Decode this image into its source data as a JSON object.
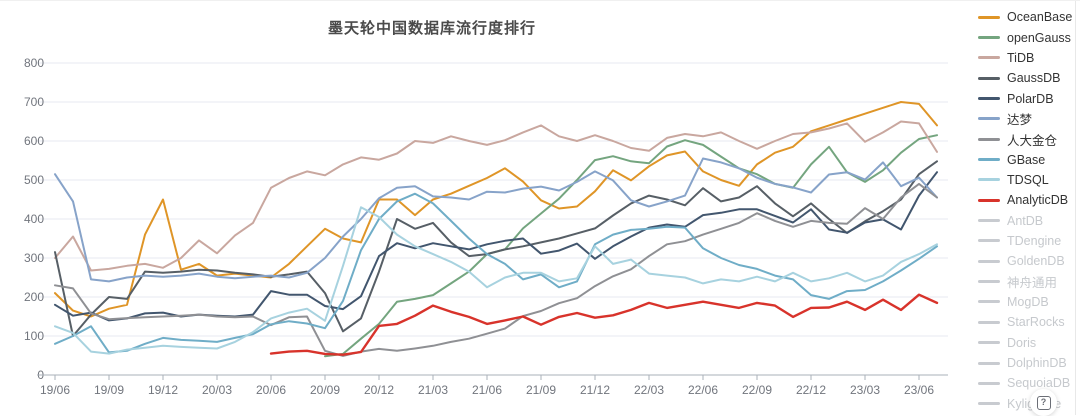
{
  "help_button": {
    "icon": "boxed-question-icon",
    "glyph": "?"
  },
  "axis_style": {
    "label_color": "#71757d",
    "grid_color": "#e7eaf1",
    "axis_line_color": "#aab0b8"
  },
  "chart_data": {
    "type": "line",
    "title": "墨天轮中国数据库流行度排行",
    "xlabel": "",
    "ylabel": "",
    "ylim": [
      0,
      800
    ],
    "y_ticks": [
      0,
      100,
      200,
      300,
      400,
      500,
      600,
      700,
      800
    ],
    "grid": true,
    "legend_position": "right",
    "x": [
      "19/06",
      "19/07",
      "19/08",
      "19/09",
      "19/10",
      "19/11",
      "19/12",
      "20/01",
      "20/02",
      "20/03",
      "20/04",
      "20/05",
      "20/06",
      "20/07",
      "20/08",
      "20/09",
      "20/10",
      "20/11",
      "20/12",
      "21/01",
      "21/02",
      "21/03",
      "21/04",
      "21/05",
      "21/06",
      "21/07",
      "21/08",
      "21/09",
      "21/10",
      "21/11",
      "21/12",
      "22/01",
      "22/02",
      "22/03",
      "22/04",
      "22/05",
      "22/06",
      "22/07",
      "22/08",
      "22/09",
      "22/10",
      "22/11",
      "22/12",
      "23/01",
      "23/02",
      "23/03",
      "23/04",
      "23/05",
      "23/06",
      "23/07"
    ],
    "x_tick_every": 3,
    "disabled_swatch_color": "#c8cbd0",
    "series": [
      {
        "name": "OceanBase",
        "color": "#df9527",
        "active": true,
        "values": [
          210,
          165,
          150,
          170,
          180,
          360,
          450,
          270,
          285,
          255,
          260,
          255,
          250,
          285,
          330,
          375,
          350,
          340,
          450,
          450,
          410,
          450,
          465,
          485,
          505,
          530,
          496,
          448,
          427,
          432,
          471,
          525,
          499,
          535,
          563,
          573,
          522,
          500,
          485,
          540,
          570,
          585,
          625,
          640,
          655,
          670,
          685,
          700,
          695,
          640
        ]
      },
      {
        "name": "openGauss",
        "color": "#74a57f",
        "active": true,
        "values": [
          null,
          null,
          null,
          null,
          null,
          null,
          null,
          null,
          null,
          null,
          null,
          null,
          null,
          null,
          null,
          48,
          54,
          93,
          131,
          188,
          195,
          205,
          235,
          265,
          310,
          322,
          376,
          414,
          452,
          500,
          551,
          561,
          548,
          543,
          586,
          602,
          590,
          560,
          530,
          515,
          490,
          480,
          540,
          585,
          520,
          495,
          525,
          570,
          605,
          615
        ]
      },
      {
        "name": "TiDB",
        "color": "#c9a79f",
        "active": true,
        "values": [
          300,
          355,
          268,
          272,
          280,
          285,
          275,
          300,
          345,
          312,
          358,
          390,
          480,
          505,
          522,
          512,
          540,
          558,
          552,
          568,
          600,
          595,
          612,
          600,
          590,
          602,
          622,
          640,
          612,
          600,
          615,
          600,
          582,
          575,
          608,
          618,
          612,
          622,
          600,
          580,
          600,
          618,
          622,
          632,
          645,
          598,
          622,
          650,
          645,
          572
        ]
      },
      {
        "name": "GaussDB",
        "color": "#575f66",
        "active": true,
        "values": [
          315,
          100,
          155,
          200,
          195,
          265,
          262,
          265,
          270,
          268,
          262,
          258,
          252,
          258,
          265,
          210,
          112,
          145,
          265,
          400,
          375,
          390,
          340,
          305,
          310,
          322,
          330,
          340,
          350,
          363,
          376,
          409,
          440,
          460,
          450,
          435,
          479,
          445,
          455,
          484,
          440,
          407,
          440,
          400,
          364,
          394,
          420,
          450,
          515,
          548
        ]
      },
      {
        "name": "PolarDB",
        "color": "#42566e",
        "active": true,
        "values": [
          180,
          152,
          160,
          140,
          145,
          158,
          160,
          150,
          155,
          152,
          150,
          155,
          215,
          206,
          206,
          177,
          169,
          202,
          305,
          338,
          325,
          338,
          330,
          322,
          335,
          344,
          350,
          311,
          319,
          337,
          298,
          330,
          355,
          378,
          386,
          380,
          410,
          416,
          425,
          425,
          408,
          391,
          425,
          373,
          365,
          391,
          399,
          373,
          460,
          520
        ]
      },
      {
        "name": "达梦",
        "color": "#87a3c9",
        "active": true,
        "values": [
          515,
          445,
          245,
          240,
          250,
          255,
          252,
          255,
          260,
          252,
          248,
          252,
          255,
          250,
          262,
          300,
          355,
          400,
          453,
          480,
          484,
          458,
          455,
          450,
          470,
          468,
          478,
          483,
          473,
          495,
          522,
          499,
          448,
          432,
          445,
          460,
          555,
          545,
          530,
          506,
          490,
          481,
          468,
          514,
          520,
          501,
          545,
          484,
          506,
          455
        ]
      },
      {
        "name": "人大金仓",
        "color": "#8f9094",
        "active": true,
        "values": [
          230,
          222,
          158,
          143,
          146,
          148,
          150,
          152,
          155,
          150,
          148,
          150,
          128,
          148,
          150,
          62,
          49,
          60,
          67,
          62,
          68,
          75,
          85,
          93,
          106,
          119,
          151,
          164,
          184,
          197,
          228,
          253,
          271,
          305,
          335,
          343,
          360,
          375,
          390,
          415,
          395,
          380,
          395,
          390,
          388,
          428,
          400,
          455,
          490,
          455
        ]
      },
      {
        "name": "GBase",
        "color": "#6fadc7",
        "active": true,
        "values": [
          80,
          100,
          125,
          58,
          62,
          80,
          95,
          90,
          88,
          85,
          95,
          105,
          130,
          138,
          132,
          120,
          190,
          320,
          400,
          445,
          465,
          440,
          395,
          350,
          310,
          285,
          245,
          258,
          225,
          240,
          335,
          360,
          372,
          375,
          380,
          378,
          325,
          300,
          282,
          272,
          255,
          245,
          205,
          195,
          215,
          218,
          240,
          268,
          298,
          330
        ]
      },
      {
        "name": "TDSQL",
        "color": "#a7d2df",
        "active": true,
        "values": [
          125,
          108,
          60,
          55,
          65,
          70,
          75,
          72,
          70,
          68,
          85,
          110,
          145,
          160,
          170,
          139,
          280,
          430,
          405,
          360,
          330,
          310,
          290,
          265,
          225,
          250,
          262,
          262,
          240,
          248,
          330,
          285,
          296,
          260,
          255,
          250,
          235,
          245,
          240,
          252,
          240,
          262,
          240,
          248,
          262,
          240,
          255,
          290,
          310,
          335
        ]
      },
      {
        "name": "AnalyticDB",
        "color": "#d8332b",
        "active": true,
        "values": [
          null,
          null,
          null,
          null,
          null,
          null,
          null,
          null,
          null,
          null,
          null,
          null,
          55,
          60,
          62,
          54,
          52,
          59,
          126,
          131,
          152,
          178,
          162,
          149,
          131,
          140,
          150,
          129,
          149,
          159,
          147,
          153,
          167,
          185,
          172,
          180,
          188,
          180,
          172,
          185,
          178,
          149,
          172,
          173,
          188,
          167,
          193,
          167,
          206,
          185
        ]
      },
      {
        "name": "AntDB",
        "color": "#c8cbd0",
        "active": false,
        "values": []
      },
      {
        "name": "TDengine",
        "color": "#c8cbd0",
        "active": false,
        "values": []
      },
      {
        "name": "GoldenDB",
        "color": "#c8cbd0",
        "active": false,
        "values": []
      },
      {
        "name": "神舟通用",
        "color": "#c8cbd0",
        "active": false,
        "values": []
      },
      {
        "name": "MogDB",
        "color": "#c8cbd0",
        "active": false,
        "values": []
      },
      {
        "name": "StarRocks",
        "color": "#c8cbd0",
        "active": false,
        "values": []
      },
      {
        "name": "Doris",
        "color": "#c8cbd0",
        "active": false,
        "values": []
      },
      {
        "name": "DolphinDB",
        "color": "#c8cbd0",
        "active": false,
        "values": []
      },
      {
        "name": "SequoiaDB",
        "color": "#c8cbd0",
        "active": false,
        "values": []
      },
      {
        "name": "Kyligence",
        "color": "#c8cbd0",
        "active": false,
        "values": []
      }
    ]
  }
}
